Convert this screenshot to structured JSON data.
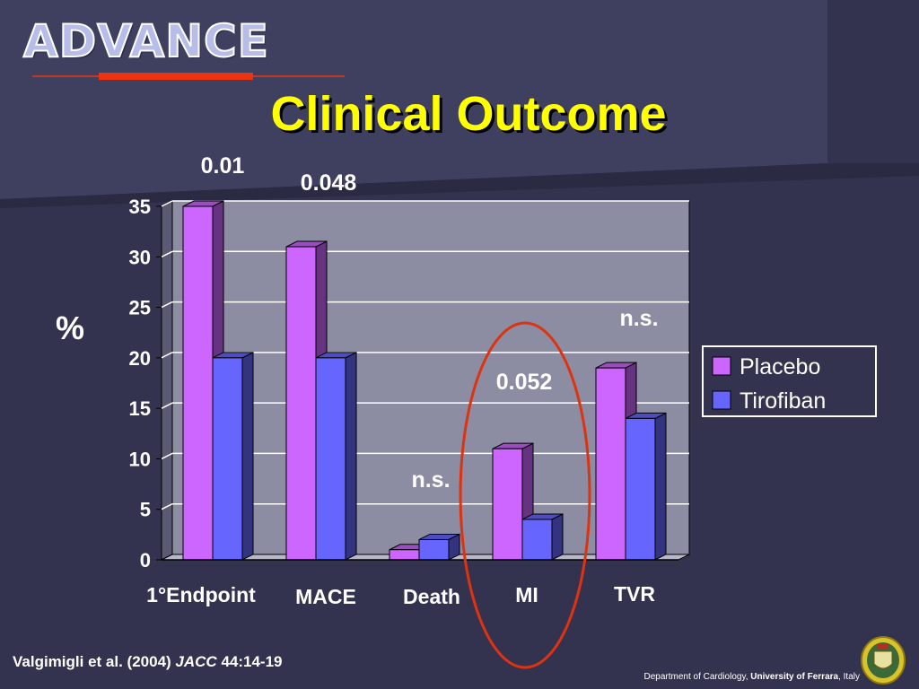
{
  "header": {
    "logo_text": "ADVANCE",
    "title": "Clinical Outcome"
  },
  "footer": {
    "cite_authors": "Valgimigli et al. (2004)",
    "cite_journal": "JACC",
    "cite_ref": "44:14-19",
    "dept_prefix": "Department of Cardiology,",
    "dept_university": "University of Ferrara",
    "dept_suffix": ", Italy"
  },
  "colors": {
    "background": "#333350",
    "placebo": "#cc66ff",
    "tirofiban": "#6666ff",
    "title": "#ffff00",
    "highlight_ring": "#dd3311",
    "logo_underline": "#ee3311"
  },
  "chart_data": {
    "type": "bar",
    "ylabel": "%",
    "ylim": [
      0,
      35
    ],
    "yticks": [
      0,
      5,
      10,
      15,
      20,
      25,
      30,
      35
    ],
    "categories": [
      "1°Endpoint",
      "MACE",
      "Death",
      "MI",
      "TVR"
    ],
    "series": [
      {
        "name": "Placebo",
        "values": [
          35,
          31,
          1,
          11,
          19
        ]
      },
      {
        "name": "Tirofiban",
        "values": [
          20,
          20,
          2,
          4,
          14
        ]
      }
    ],
    "p_values": [
      "0.01",
      "0.048",
      "n.s.",
      "0.052",
      "n.s."
    ],
    "legend_position": "right",
    "grid": true,
    "highlighted_category": "MI"
  }
}
